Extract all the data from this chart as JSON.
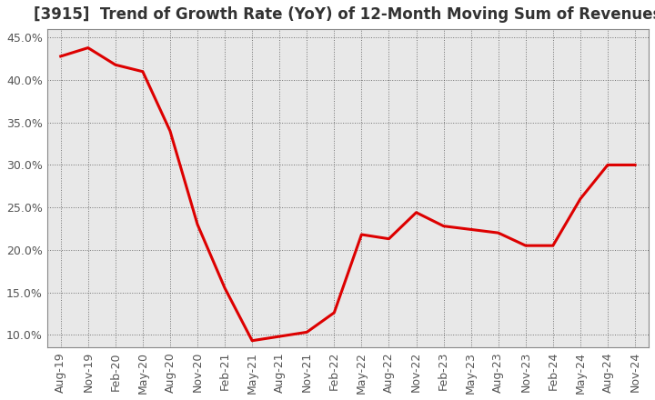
{
  "title": "[3915]  Trend of Growth Rate (YoY) of 12-Month Moving Sum of Revenues",
  "x_labels": [
    "Aug-19",
    "Nov-19",
    "Feb-20",
    "May-20",
    "Aug-20",
    "Nov-20",
    "Feb-21",
    "May-21",
    "Aug-21",
    "Nov-21",
    "Feb-22",
    "May-22",
    "Aug-22",
    "Nov-22",
    "Feb-23",
    "May-23",
    "Aug-23",
    "Nov-23",
    "Feb-24",
    "May-24",
    "Aug-24",
    "Nov-24"
  ],
  "x_values": [
    0,
    3,
    6,
    9,
    12,
    15,
    18,
    21,
    24,
    27,
    30,
    33,
    36,
    39,
    42,
    45,
    48,
    51,
    54,
    57,
    60,
    63
  ],
  "y_values": [
    0.428,
    0.438,
    0.418,
    0.41,
    0.34,
    0.23,
    0.155,
    0.093,
    0.098,
    0.103,
    0.126,
    0.218,
    0.213,
    0.244,
    0.228,
    0.224,
    0.22,
    0.205,
    0.205,
    0.26,
    0.3,
    0.3
  ],
  "line_color": "#dd0000",
  "line_width": 2.2,
  "ylim": [
    0.085,
    0.46
  ],
  "yticks": [
    0.1,
    0.15,
    0.2,
    0.25,
    0.3,
    0.35,
    0.4,
    0.45
  ],
  "plot_bg_color": "#e8e8e8",
  "fig_bg_color": "#ffffff",
  "grid_color": "#555555",
  "title_fontsize": 12,
  "tick_fontsize": 9,
  "title_color": "#333333",
  "tick_color": "#555555"
}
